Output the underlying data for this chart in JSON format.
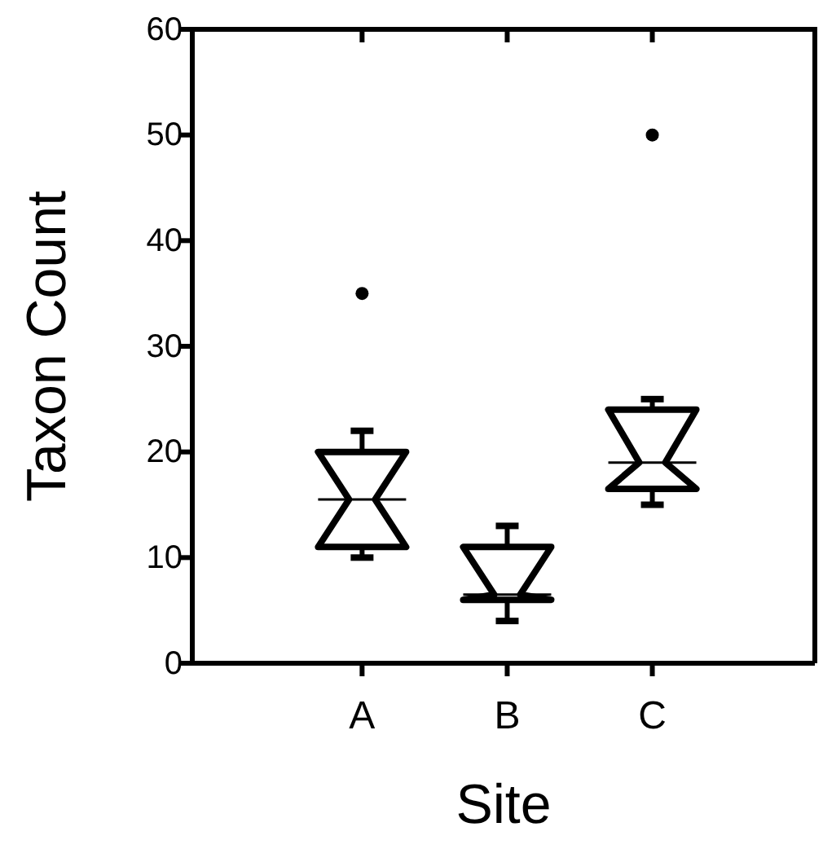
{
  "chart_data": {
    "type": "box",
    "xlabel": "Site",
    "ylabel": "Taxon Count",
    "categories": [
      "A",
      "B",
      "C"
    ],
    "boxes": [
      {
        "low": 10,
        "q1": 11,
        "median": 15.5,
        "q3": 20,
        "high": 22,
        "outliers": [
          35
        ]
      },
      {
        "low": 4,
        "q1": 6,
        "median": 6.5,
        "q3": 11,
        "high": 13
      },
      {
        "low": 15,
        "q1": 16.5,
        "median": 19,
        "q3": 24,
        "high": 25,
        "outliers": [
          50
        ]
      }
    ],
    "color": "#000000",
    "ylim": [
      0,
      60
    ],
    "yticks": [
      0,
      10,
      20,
      30,
      40,
      50,
      60
    ],
    "grid": false
  }
}
